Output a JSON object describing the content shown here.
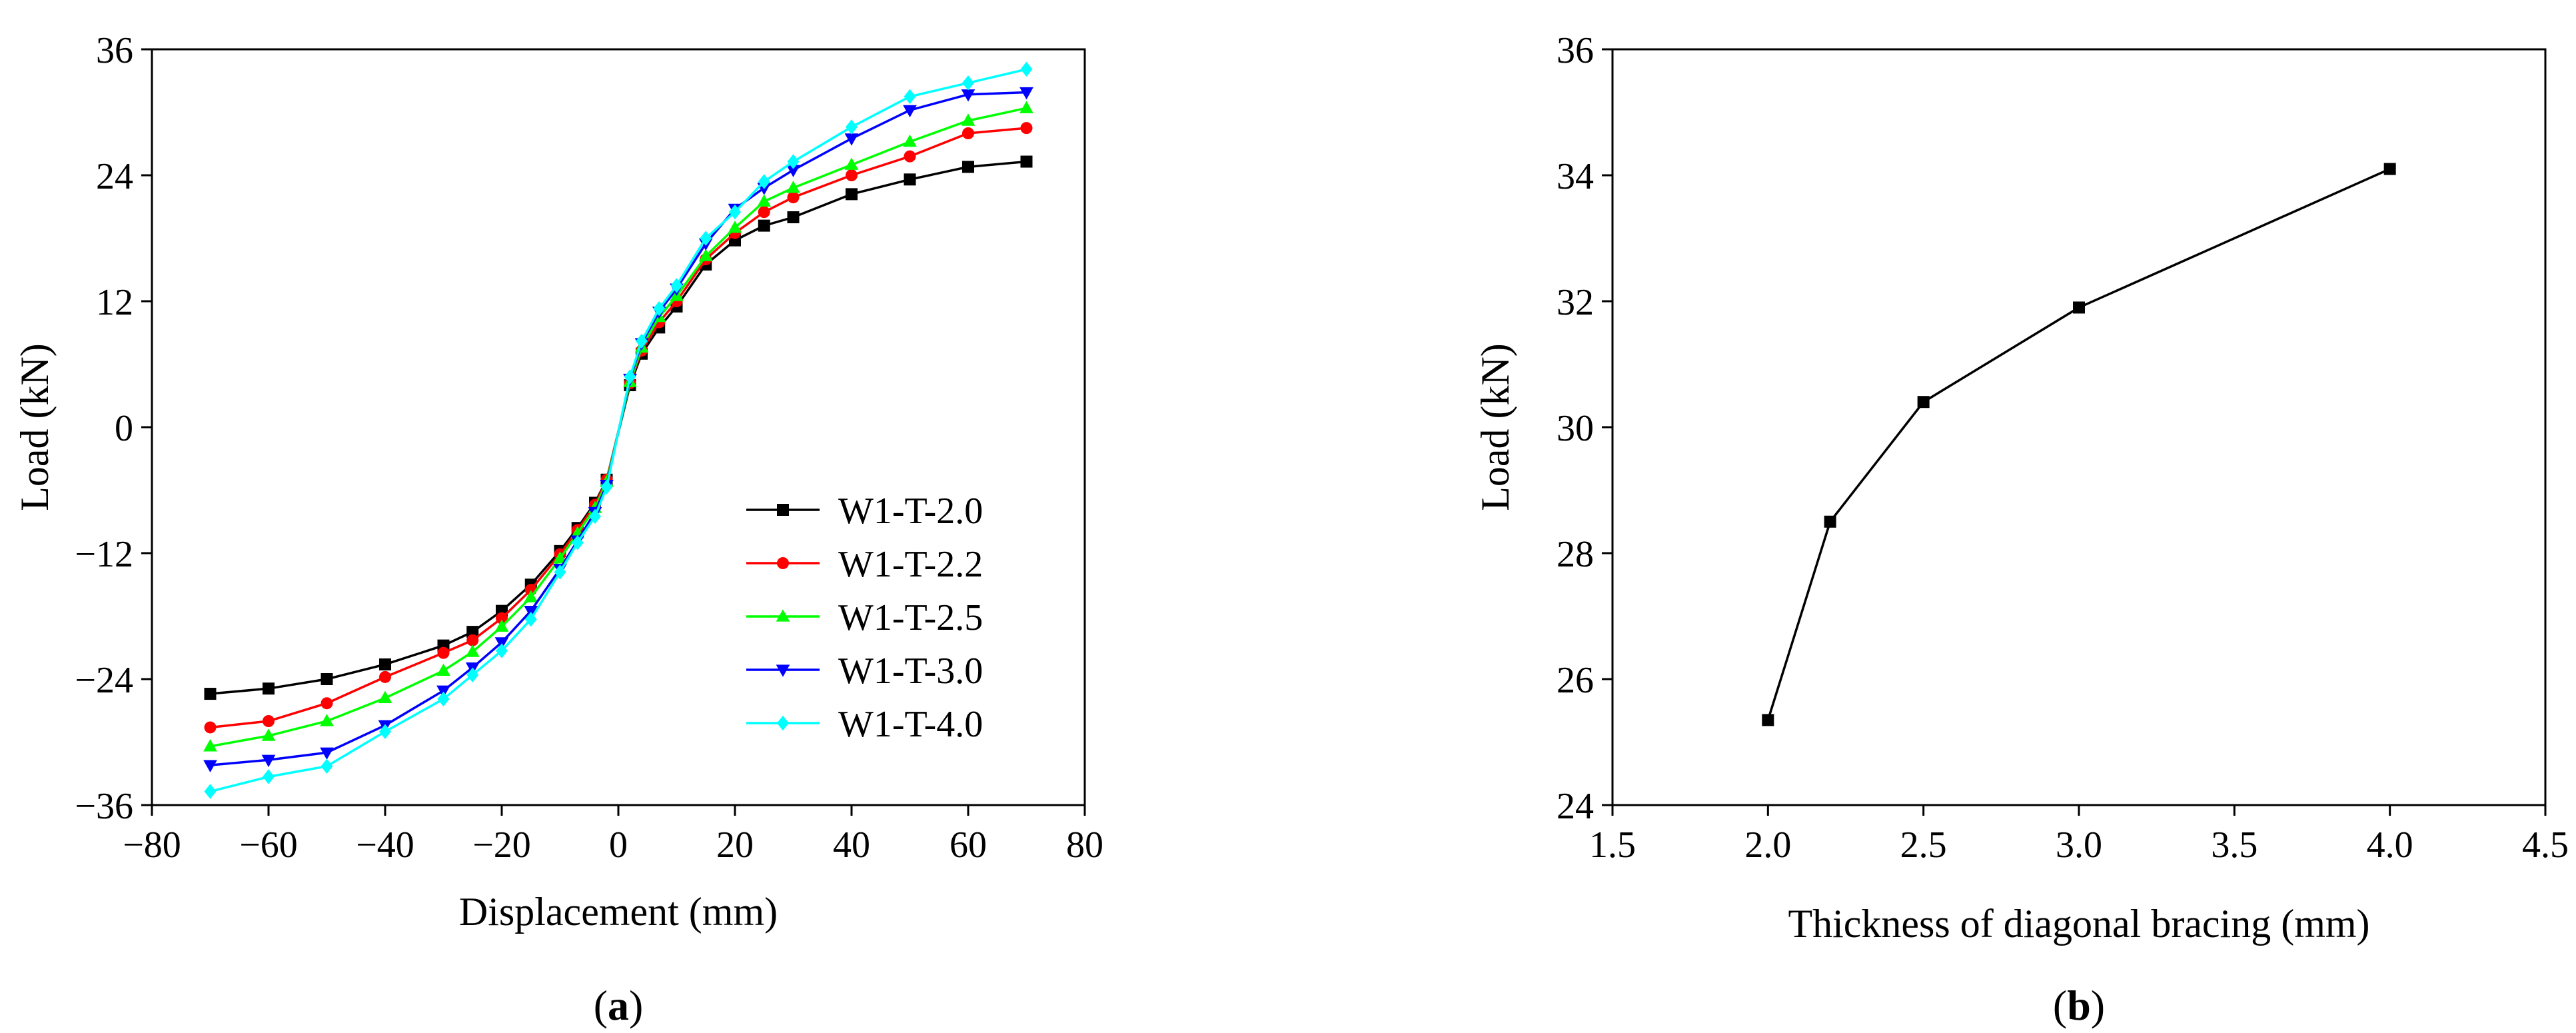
{
  "chart_data": [
    {
      "panel_label": "a",
      "type": "line",
      "xlabel": "Displacement (mm)",
      "ylabel": "Load (kN)",
      "xlim": [
        -80,
        80
      ],
      "ylim": [
        -36,
        36
      ],
      "xticks": [
        -80,
        -60,
        -40,
        -20,
        0,
        20,
        40,
        60,
        80
      ],
      "yticks": [
        -36,
        -24,
        -12,
        0,
        12,
        24,
        36
      ],
      "xtick_labels": [
        "−80",
        "−60",
        "−40",
        "−20",
        "0",
        "20",
        "40",
        "60",
        "80"
      ],
      "ytick_labels": [
        "−36",
        "−24",
        "−12",
        "0",
        "12",
        "24",
        "36"
      ],
      "legend_position": "lower-right",
      "x": [
        -70,
        -60,
        -50,
        -40,
        -30,
        -25,
        -20,
        -15,
        -10,
        -7,
        -4,
        -2,
        2,
        4,
        7,
        10,
        15,
        20,
        25,
        30,
        40,
        50,
        60,
        70
      ],
      "series": [
        {
          "name": "W1-T-2.0",
          "color": "#000000",
          "marker": "square",
          "values": [
            -25.4,
            -24.9,
            -24.0,
            -22.6,
            -20.8,
            -19.5,
            -17.5,
            -15.0,
            -11.8,
            -9.6,
            -7.2,
            -5.0,
            4.0,
            7.0,
            9.5,
            11.5,
            15.5,
            17.8,
            19.2,
            20.0,
            22.2,
            23.6,
            24.8,
            25.3
          ]
        },
        {
          "name": "W1-T-2.2",
          "color": "#ff0000",
          "marker": "circle",
          "values": [
            -28.6,
            -28.0,
            -26.3,
            -23.8,
            -21.5,
            -20.3,
            -18.2,
            -15.5,
            -12.1,
            -9.8,
            -7.4,
            -5.0,
            4.2,
            7.3,
            10.0,
            12.0,
            16.0,
            18.5,
            20.5,
            21.9,
            24.0,
            25.8,
            28.0,
            28.5
          ]
        },
        {
          "name": "W1-T-2.5",
          "color": "#00ff00",
          "marker": "triangle-up",
          "values": [
            -30.4,
            -29.4,
            -28.0,
            -25.8,
            -23.2,
            -21.4,
            -19.0,
            -16.2,
            -12.5,
            -10.1,
            -7.7,
            -5.2,
            4.3,
            7.6,
            10.5,
            12.5,
            16.3,
            19.0,
            21.5,
            22.8,
            25.0,
            27.2,
            29.2,
            30.4
          ]
        },
        {
          "name": "W1-T-3.0",
          "color": "#0000ff",
          "marker": "triangle-down",
          "values": [
            -32.2,
            -31.7,
            -31.0,
            -28.4,
            -25.1,
            -22.9,
            -20.5,
            -17.5,
            -13.5,
            -10.8,
            -8.1,
            -5.5,
            4.6,
            8.0,
            11.0,
            13.2,
            17.5,
            20.8,
            22.8,
            24.5,
            27.5,
            30.2,
            31.7,
            31.9
          ]
        },
        {
          "name": "W1-T-4.0",
          "color": "#00ffff",
          "marker": "diamond",
          "values": [
            -34.7,
            -33.3,
            -32.3,
            -29.0,
            -25.9,
            -23.6,
            -21.3,
            -18.3,
            -13.8,
            -11.0,
            -8.5,
            -5.7,
            4.8,
            8.2,
            11.3,
            13.5,
            18.0,
            20.5,
            23.4,
            25.3,
            28.6,
            31.5,
            32.8,
            34.1
          ]
        }
      ]
    },
    {
      "panel_label": "b",
      "type": "line",
      "xlabel": "Thickness of diagonal bracing (mm)",
      "ylabel": "Load (kN)",
      "xlim": [
        1.5,
        4.5
      ],
      "ylim": [
        24,
        36
      ],
      "xticks": [
        1.5,
        2.0,
        2.5,
        3.0,
        3.5,
        4.0,
        4.5
      ],
      "yticks": [
        24,
        26,
        28,
        30,
        32,
        34,
        36
      ],
      "xtick_labels": [
        "1.5",
        "2.0",
        "2.5",
        "3.0",
        "3.5",
        "4.0",
        "4.5"
      ],
      "ytick_labels": [
        "24",
        "26",
        "28",
        "30",
        "32",
        "34",
        "36"
      ],
      "series": [
        {
          "name": "Load",
          "color": "#000000",
          "marker": "square",
          "x": [
            2.0,
            2.2,
            2.5,
            3.0,
            4.0
          ],
          "values": [
            25.35,
            28.5,
            30.4,
            31.9,
            34.1
          ]
        }
      ]
    }
  ]
}
